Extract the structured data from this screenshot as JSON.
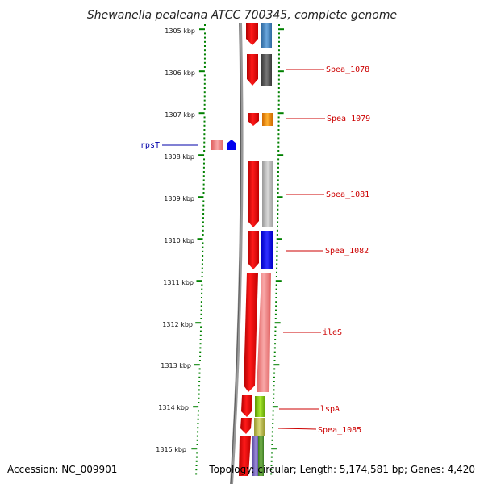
{
  "title": "Shewanella pealeana ATCC 700345, complete genome",
  "accession": "Accession: NC_009901",
  "topology": "Topology: circular; Length: 5,174,581 bp; Genes: 4,420",
  "kbp_labels": [
    "1305 kbp",
    "1306 kbp",
    "1307 kbp",
    "1308 kbp",
    "1309 kbp",
    "1310 kbp",
    "1311 kbp",
    "1312 kbp",
    "1313 kbp",
    "1314 kbp",
    "1315 kbp"
  ],
  "genes_right": [
    "Spea_1078",
    "Spea_1079",
    "Spea_1081",
    "Spea_1082",
    "ileS",
    "lspA",
    "Spea_1085"
  ],
  "genes_left": [
    "rpsT"
  ],
  "colors": {
    "tick": "#008000",
    "backbone": "#888888",
    "strand": "#ff0000",
    "label_right": "#cc0000",
    "label_left": "#0000aa"
  }
}
